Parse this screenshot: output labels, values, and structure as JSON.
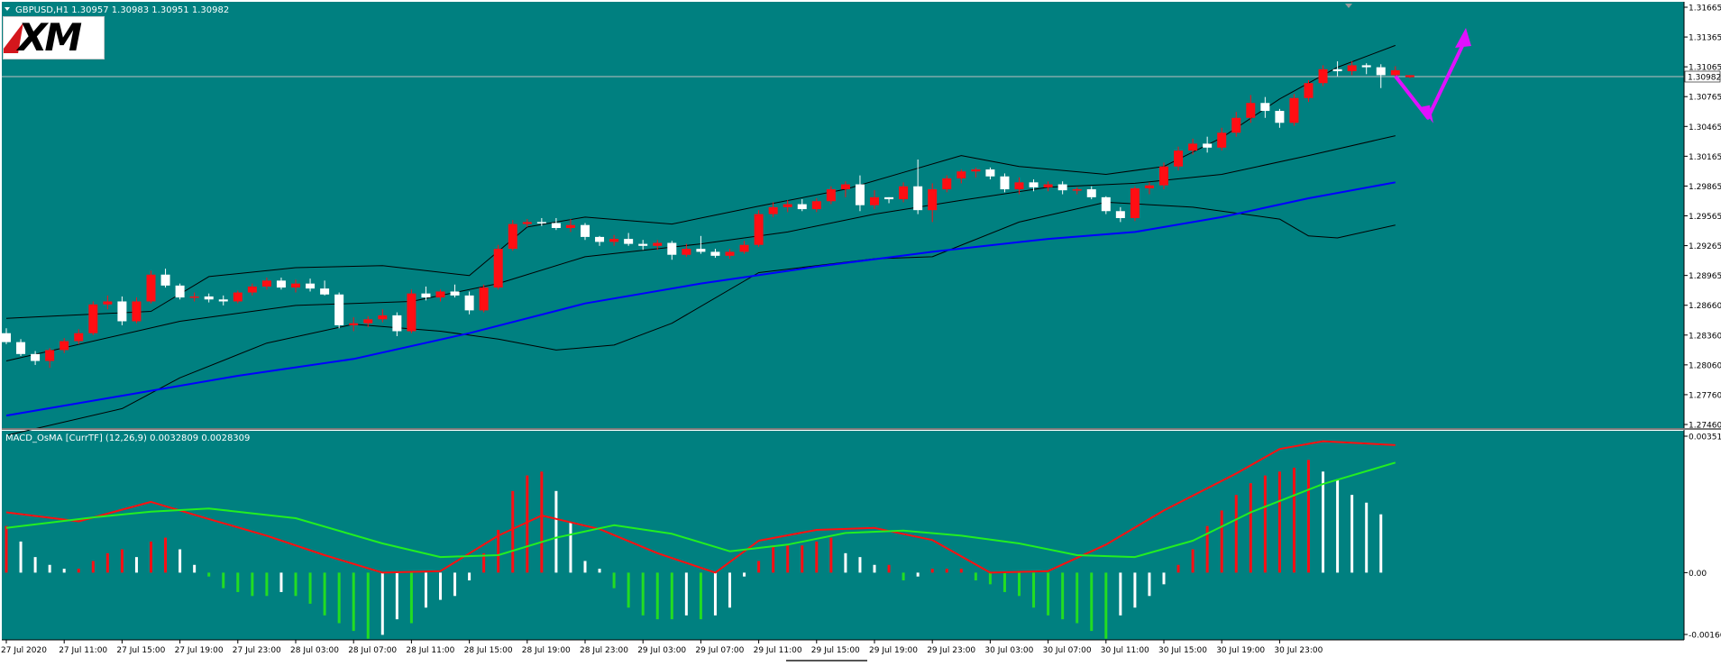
{
  "colors": {
    "background": "#008080",
    "grid": "#1b9a9a",
    "bull_candle": "#ff0e13",
    "bear_candle": "#ffffff",
    "doji": "#2ee02e",
    "bollinger": "#000000",
    "moving_average": "#0000ff",
    "macd_line": "#ff1010",
    "signal_line": "#22ee22",
    "histogram_up": "#ff0e13",
    "histogram_down": "#22dd22",
    "histogram_neutral": "#ffffff",
    "arrow": "#e010ff",
    "price_line": "#c0c0c0",
    "text": "#ffffff"
  },
  "header": {
    "symbol_text": "GBPUSD,H1  1.30957 1.30983 1.30951 1.30982",
    "logo_text": "XM"
  },
  "indicator": {
    "label": "MACD_OsMA [CurrTF] (12,26,9) 0.0032809 0.0028309"
  },
  "chart_data": [
    {
      "type": "candlestick",
      "symbol": "GBPUSD",
      "timeframe": "H1",
      "ohlc_header": {
        "open": 1.30957,
        "high": 1.30983,
        "low": 1.30951,
        "close": 1.30982
      },
      "current_price_label": "1.30982",
      "y_ticks": [
        "1.31665",
        "1.31365",
        "1.31065",
        "1.30765",
        "1.30465",
        "1.30165",
        "1.29865",
        "1.29565",
        "1.29265",
        "1.28965",
        "1.28660",
        "1.28360",
        "1.28060",
        "1.27760",
        "1.27460"
      ],
      "ylim": [
        1.2746,
        1.31665
      ],
      "x_ticks": [
        "27 Jul 2020",
        "27 Jul 11:00",
        "27 Jul 15:00",
        "27 Jul 19:00",
        "27 Jul 23:00",
        "28 Jul 03:00",
        "28 Jul 07:00",
        "28 Jul 11:00",
        "28 Jul 15:00",
        "28 Jul 19:00",
        "28 Jul 23:00",
        "29 Jul 03:00",
        "29 Jul 07:00",
        "29 Jul 11:00",
        "29 Jul 15:00",
        "29 Jul 19:00",
        "29 Jul 23:00",
        "30 Jul 03:00",
        "30 Jul 07:00",
        "30 Jul 11:00",
        "30 Jul 15:00",
        "30 Jul 19:00",
        "30 Jul 23:00"
      ],
      "bars_per_tick": 4,
      "candles": [
        [
          1.2838,
          1.2843,
          1.2827,
          1.2829
        ],
        [
          1.2829,
          1.2832,
          1.2815,
          1.2817
        ],
        [
          1.2817,
          1.282,
          1.2806,
          1.281
        ],
        [
          1.281,
          1.2823,
          1.2803,
          1.2821
        ],
        [
          1.2821,
          1.2833,
          1.2818,
          1.283
        ],
        [
          1.283,
          1.2842,
          1.2827,
          1.2838
        ],
        [
          1.2838,
          1.287,
          1.2836,
          1.2867
        ],
        [
          1.2867,
          1.2876,
          1.2862,
          1.287
        ],
        [
          1.287,
          1.2875,
          1.2846,
          1.285
        ],
        [
          1.285,
          1.2874,
          1.2848,
          1.287
        ],
        [
          1.287,
          1.2901,
          1.2868,
          1.2897
        ],
        [
          1.2897,
          1.2903,
          1.2884,
          1.2886
        ],
        [
          1.2886,
          1.2888,
          1.2872,
          1.2874
        ],
        [
          1.2874,
          1.2879,
          1.287,
          1.2875
        ],
        [
          1.2875,
          1.2878,
          1.2869,
          1.2872
        ],
        [
          1.2872,
          1.2876,
          1.2866,
          1.287
        ],
        [
          1.287,
          1.2881,
          1.2868,
          1.2879
        ],
        [
          1.2879,
          1.2888,
          1.2876,
          1.2885
        ],
        [
          1.2885,
          1.2894,
          1.2882,
          1.2891
        ],
        [
          1.2891,
          1.2894,
          1.2882,
          1.2884
        ],
        [
          1.2884,
          1.2892,
          1.2879,
          1.2888
        ],
        [
          1.2888,
          1.2893,
          1.288,
          1.2883
        ],
        [
          1.2883,
          1.2891,
          1.2876,
          1.2877
        ],
        [
          1.2877,
          1.2879,
          1.2843,
          1.2846
        ],
        [
          1.2846,
          1.2854,
          1.284,
          1.2848
        ],
        [
          1.2848,
          1.2855,
          1.2844,
          1.2852
        ],
        [
          1.2852,
          1.2862,
          1.2849,
          1.2856
        ],
        [
          1.2856,
          1.2859,
          1.2835,
          1.284
        ],
        [
          1.284,
          1.2882,
          1.2838,
          1.2878
        ],
        [
          1.2878,
          1.2885,
          1.2871,
          1.2874
        ],
        [
          1.2874,
          1.2882,
          1.287,
          1.288
        ],
        [
          1.288,
          1.2887,
          1.2874,
          1.2876
        ],
        [
          1.2876,
          1.288,
          1.2857,
          1.2861
        ],
        [
          1.2861,
          1.2887,
          1.2859,
          1.2884
        ],
        [
          1.2884,
          1.2927,
          1.2882,
          1.2923
        ],
        [
          1.2923,
          1.2952,
          1.2921,
          1.2948
        ],
        [
          1.2948,
          1.2953,
          1.2945,
          1.295
        ],
        [
          1.295,
          1.2954,
          1.2946,
          1.2949
        ],
        [
          1.2949,
          1.2954,
          1.2942,
          1.2944
        ],
        [
          1.2944,
          1.2953,
          1.294,
          1.2947
        ],
        [
          1.2947,
          1.2949,
          1.2932,
          1.2935
        ],
        [
          1.2935,
          1.2936,
          1.2926,
          1.293
        ],
        [
          1.293,
          1.2937,
          1.2926,
          1.2933
        ],
        [
          1.2933,
          1.2939,
          1.2926,
          1.2928
        ],
        [
          1.2928,
          1.2932,
          1.2922,
          1.2926
        ],
        [
          1.2926,
          1.2932,
          1.2922,
          1.2929
        ],
        [
          1.2929,
          1.2931,
          1.2912,
          1.2917
        ],
        [
          1.2917,
          1.2928,
          1.2915,
          1.2923
        ],
        [
          1.2923,
          1.2936,
          1.2918,
          1.292
        ],
        [
          1.292,
          1.2923,
          1.2914,
          1.2916
        ],
        [
          1.2916,
          1.2923,
          1.2913,
          1.292
        ],
        [
          1.292,
          1.2931,
          1.2918,
          1.2927
        ],
        [
          1.2927,
          1.2962,
          1.2925,
          1.2958
        ],
        [
          1.2958,
          1.297,
          1.2955,
          1.2965
        ],
        [
          1.2965,
          1.2972,
          1.296,
          1.2968
        ],
        [
          1.2968,
          1.2973,
          1.2961,
          1.2963
        ],
        [
          1.2963,
          1.2974,
          1.296,
          1.2971
        ],
        [
          1.2971,
          1.2986,
          1.2968,
          1.2983
        ],
        [
          1.2983,
          1.2991,
          1.2975,
          1.2988
        ],
        [
          1.2988,
          1.2997,
          1.2961,
          1.2967
        ],
        [
          1.2967,
          1.2982,
          1.2963,
          1.2975
        ],
        [
          1.2975,
          1.2975,
          1.2969,
          1.2973
        ],
        [
          1.2973,
          1.299,
          1.297,
          1.2986
        ],
        [
          1.2986,
          1.3013,
          1.2958,
          1.2962
        ],
        [
          1.2962,
          1.2989,
          1.295,
          1.2983
        ],
        [
          1.2983,
          1.2997,
          1.298,
          1.2994
        ],
        [
          1.2994,
          1.3003,
          1.2989,
          1.3001
        ],
        [
          1.3001,
          1.3005,
          1.2995,
          1.3003
        ],
        [
          1.3003,
          1.3005,
          1.2993,
          1.2996
        ],
        [
          1.2996,
          1.2999,
          1.298,
          1.2983
        ],
        [
          1.2983,
          1.2995,
          1.2978,
          1.299
        ],
        [
          1.299,
          1.2993,
          1.2981,
          1.2985
        ],
        [
          1.2985,
          1.2991,
          1.2981,
          1.2988
        ],
        [
          1.2988,
          1.2991,
          1.2978,
          1.2982
        ],
        [
          1.2982,
          1.2985,
          1.2978,
          1.2983
        ],
        [
          1.2983,
          1.2986,
          1.2973,
          1.2975
        ],
        [
          1.2975,
          1.2976,
          1.2958,
          1.2961
        ],
        [
          1.2961,
          1.2965,
          1.295,
          1.2954
        ],
        [
          1.2954,
          1.2986,
          1.2951,
          1.2984
        ],
        [
          1.2984,
          1.299,
          1.2978,
          1.2987
        ],
        [
          1.2987,
          1.301,
          1.2983,
          1.3006
        ],
        [
          1.3006,
          1.3026,
          1.3002,
          1.3022
        ],
        [
          1.3022,
          1.3034,
          1.3018,
          1.3029
        ],
        [
          1.3029,
          1.3036,
          1.302,
          1.3025
        ],
        [
          1.3025,
          1.3045,
          1.3022,
          1.304
        ],
        [
          1.304,
          1.3061,
          1.3036,
          1.3055
        ],
        [
          1.3055,
          1.3078,
          1.305,
          1.307
        ],
        [
          1.307,
          1.3076,
          1.3055,
          1.3062
        ],
        [
          1.3062,
          1.3064,
          1.3045,
          1.305
        ],
        [
          1.305,
          1.3079,
          1.3047,
          1.3075
        ],
        [
          1.3075,
          1.3093,
          1.3071,
          1.309
        ],
        [
          1.309,
          1.3108,
          1.3087,
          1.3104
        ],
        [
          1.3104,
          1.3112,
          1.3097,
          1.3102
        ],
        [
          1.3102,
          1.3112,
          1.3098,
          1.3108
        ],
        [
          1.3108,
          1.311,
          1.3099,
          1.3106
        ],
        [
          1.3106,
          1.3109,
          1.3085,
          1.3098
        ],
        [
          1.3098,
          1.3107,
          1.3094,
          1.3103
        ],
        [
          1.3096,
          1.3098,
          1.3095,
          1.3098
        ]
      ],
      "bollinger_upper": [
        [
          0,
          1.2853
        ],
        [
          10,
          1.286
        ],
        [
          14,
          1.2895
        ],
        [
          20,
          1.2904
        ],
        [
          26,
          1.2906
        ],
        [
          32,
          1.2896
        ],
        [
          36,
          1.2945
        ],
        [
          40,
          1.2955
        ],
        [
          46,
          1.2948
        ],
        [
          52,
          1.2966
        ],
        [
          58,
          1.2983
        ],
        [
          62,
          1.3
        ],
        [
          66,
          1.3017
        ],
        [
          70,
          1.3006
        ],
        [
          76,
          1.2998
        ],
        [
          80,
          1.3006
        ],
        [
          84,
          1.3035
        ],
        [
          88,
          1.3074
        ],
        [
          92,
          1.3106
        ],
        [
          96,
          1.3128
        ]
      ],
      "bollinger_middle": [
        [
          0,
          1.281
        ],
        [
          12,
          1.285
        ],
        [
          20,
          1.2866
        ],
        [
          28,
          1.287
        ],
        [
          34,
          1.2888
        ],
        [
          40,
          1.2915
        ],
        [
          48,
          1.2928
        ],
        [
          54,
          1.294
        ],
        [
          60,
          1.2958
        ],
        [
          66,
          1.2972
        ],
        [
          72,
          1.2985
        ],
        [
          78,
          1.2989
        ],
        [
          84,
          1.2998
        ],
        [
          90,
          1.3017
        ],
        [
          96,
          1.3037
        ]
      ],
      "bollinger_lower": [
        [
          0,
          1.2735
        ],
        [
          8,
          1.2762
        ],
        [
          12,
          1.2793
        ],
        [
          18,
          1.2828
        ],
        [
          24,
          1.2847
        ],
        [
          30,
          1.284
        ],
        [
          34,
          1.2832
        ],
        [
          38,
          1.2821
        ],
        [
          42,
          1.2826
        ],
        [
          46,
          1.2848
        ],
        [
          52,
          1.2899
        ],
        [
          60,
          1.2913
        ],
        [
          64,
          1.2915
        ],
        [
          70,
          1.295
        ],
        [
          76,
          1.297
        ],
        [
          82,
          1.2965
        ],
        [
          88,
          1.2953
        ],
        [
          90,
          1.2936
        ],
        [
          92,
          1.2934
        ],
        [
          96,
          1.2947
        ]
      ],
      "moving_average": [
        [
          0,
          1.2755
        ],
        [
          8,
          1.2775
        ],
        [
          16,
          1.2795
        ],
        [
          24,
          1.2812
        ],
        [
          32,
          1.2838
        ],
        [
          40,
          1.2868
        ],
        [
          48,
          1.2888
        ],
        [
          56,
          1.2905
        ],
        [
          64,
          1.292
        ],
        [
          72,
          1.2933
        ],
        [
          78,
          1.294
        ],
        [
          84,
          1.2955
        ],
        [
          90,
          1.2974
        ],
        [
          96,
          1.299
        ]
      ],
      "forecast_arrow": {
        "from": [
          96,
          1.3097
        ],
        "via": [
          98,
          1.3055
        ],
        "to": [
          100,
          1.3142
        ]
      }
    },
    {
      "type": "histogram",
      "name": "MACD_OsMA [CurrTF] (12,26,9)",
      "values_label": "0.0032809 0.0028309",
      "y_ticks": [
        "0.00351",
        "0.00",
        "-0.00166"
      ],
      "ylim": [
        -0.00166,
        0.00351
      ],
      "histogram": [
        0.0012,
        0.0008,
        0.0004,
        0.0002,
        0.0001,
        0.0001,
        0.0003,
        0.0005,
        0.0006,
        0.0004,
        0.0008,
        0.0009,
        0.0006,
        0.0002,
        -0.0001,
        -0.0004,
        -0.0005,
        -0.0006,
        -0.0006,
        -0.0005,
        -0.0006,
        -0.0008,
        -0.0011,
        -0.0013,
        -0.0015,
        -0.0017,
        -0.0016,
        -0.0012,
        -0.0013,
        -0.0009,
        -0.0007,
        -0.0006,
        -0.0002,
        0.0005,
        0.0011,
        0.0021,
        0.0025,
        0.0026,
        0.0021,
        0.0013,
        0.0003,
        0.0001,
        -0.0004,
        -0.0009,
        -0.0011,
        -0.0012,
        -0.0012,
        -0.0011,
        -0.0012,
        -0.0011,
        -0.0009,
        -0.0001,
        0.0003,
        0.0007,
        0.0007,
        0.0007,
        0.0008,
        0.0009,
        0.0005,
        0.0004,
        0.0002,
        0.0002,
        -0.0002,
        -0.0001,
        0.0001,
        0.0001,
        0.0001,
        -0.0002,
        -0.0003,
        -0.0005,
        -0.0006,
        -0.0009,
        -0.0011,
        -0.0012,
        -0.0013,
        -0.0015,
        -0.0017,
        -0.0011,
        -0.0009,
        -0.0006,
        -0.0003,
        0.0002,
        0.0006,
        0.0012,
        0.0016,
        0.002,
        0.0023,
        0.0025,
        0.0026,
        0.0027,
        0.0029,
        0.0026,
        0.0024,
        0.002,
        0.0018,
        0.0015
      ],
      "macd": [
        [
          0,
          0.00155
        ],
        [
          5,
          0.00132
        ],
        [
          10,
          0.00182
        ],
        [
          14,
          0.00138
        ],
        [
          18,
          0.00095
        ],
        [
          22,
          0.00045
        ],
        [
          26,
          0.0
        ],
        [
          30,
          4e-05
        ],
        [
          34,
          0.00095
        ],
        [
          37,
          0.00147
        ],
        [
          41,
          0.00112
        ],
        [
          45,
          0.0005
        ],
        [
          49,
          0.0
        ],
        [
          52,
          0.00082
        ],
        [
          56,
          0.0011
        ],
        [
          60,
          0.00115
        ],
        [
          64,
          0.00084
        ],
        [
          68,
          0.0
        ],
        [
          72,
          4e-05
        ],
        [
          76,
          0.00072
        ],
        [
          80,
          0.0016
        ],
        [
          85,
          0.00255
        ],
        [
          88,
          0.00318
        ],
        [
          91,
          0.00338
        ],
        [
          96,
          0.00328
        ]
      ],
      "signal": [
        [
          0,
          0.00115
        ],
        [
          6,
          0.00142
        ],
        [
          10,
          0.00157
        ],
        [
          14,
          0.00165
        ],
        [
          20,
          0.0014
        ],
        [
          26,
          0.00075
        ],
        [
          30,
          0.0004
        ],
        [
          34,
          0.00045
        ],
        [
          38,
          0.0009
        ],
        [
          42,
          0.00122
        ],
        [
          46,
          0.001
        ],
        [
          50,
          0.00055
        ],
        [
          54,
          0.00072
        ],
        [
          58,
          0.00102
        ],
        [
          62,
          0.00108
        ],
        [
          66,
          0.00095
        ],
        [
          70,
          0.00075
        ],
        [
          74,
          0.00045
        ],
        [
          78,
          0.0004
        ],
        [
          82,
          0.00082
        ],
        [
          86,
          0.00155
        ],
        [
          91,
          0.00228
        ],
        [
          96,
          0.00283
        ]
      ]
    }
  ]
}
